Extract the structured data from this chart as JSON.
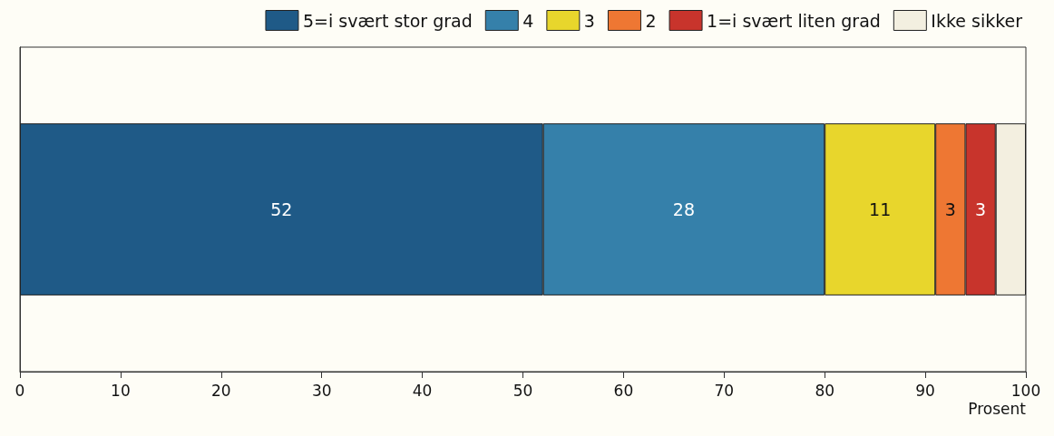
{
  "chart_data": {
    "type": "bar",
    "stacked": true,
    "orientation": "horizontal",
    "categories": [
      null
    ],
    "xlabel": "Prosent",
    "xlim": [
      0,
      100
    ],
    "xticks": [
      0,
      10,
      20,
      30,
      40,
      50,
      60,
      70,
      80,
      90,
      100
    ],
    "tick_labels": "x",
    "grid": false,
    "legend": "top right",
    "series": [
      {
        "name": "5=i svært stor grad",
        "color": "#1f5a87",
        "values": [
          52
        ],
        "value_labels": [
          "52"
        ]
      },
      {
        "name": "4",
        "color": "#3580aa",
        "values": [
          28
        ],
        "value_labels": [
          "28"
        ]
      },
      {
        "name": "3",
        "color": "#e8d62c",
        "values": [
          11
        ],
        "value_labels": [
          "11"
        ]
      },
      {
        "name": "2",
        "color": "#ee7733",
        "values": [
          3
        ],
        "value_labels": [
          "3"
        ]
      },
      {
        "name": "1=i svært liten grad",
        "color": "#c8342c",
        "values": [
          3
        ],
        "value_labels": [
          "3"
        ]
      },
      {
        "name": "Ikke sikker",
        "color": "#f3efe0",
        "values": [
          3
        ],
        "value_labels": [
          null
        ]
      }
    ]
  }
}
